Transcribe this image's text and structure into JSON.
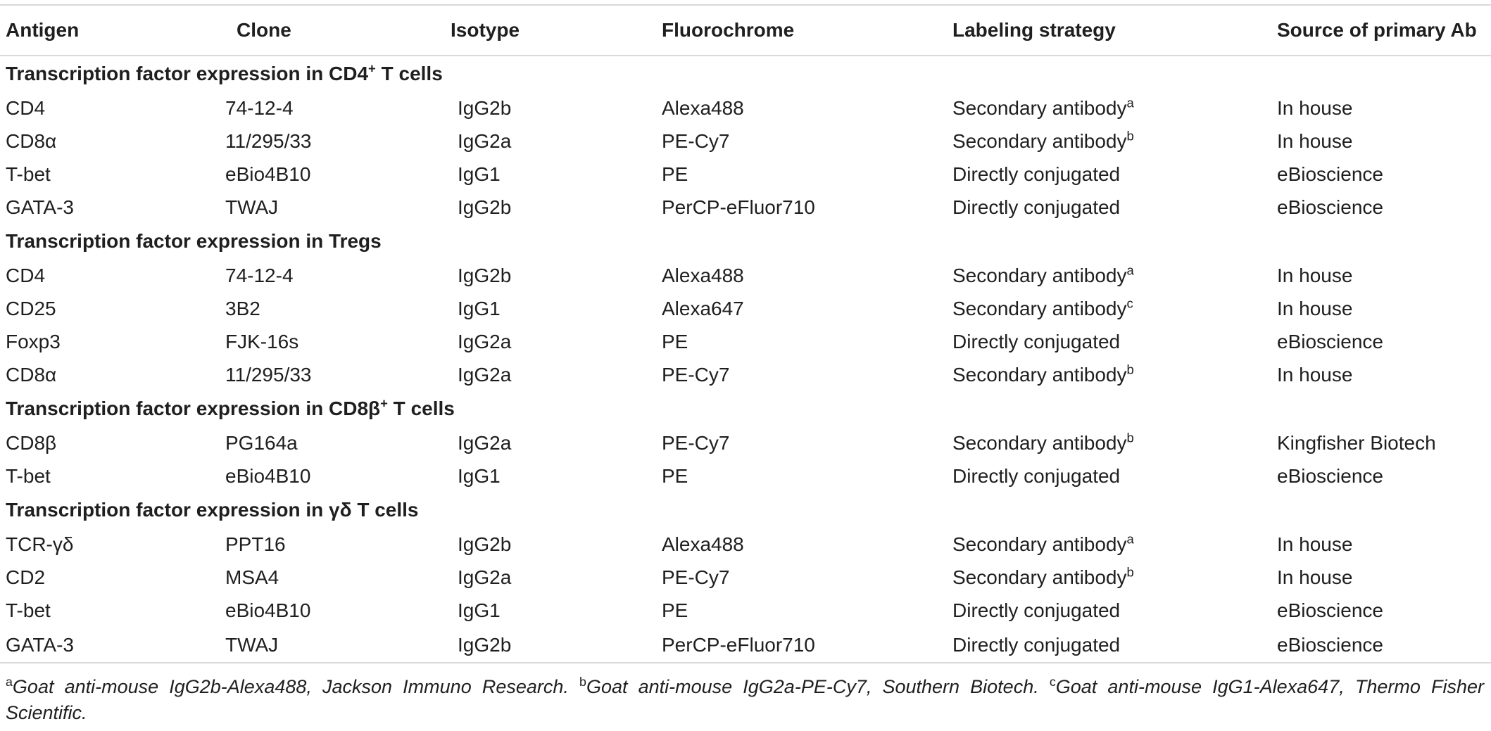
{
  "headers": [
    "Antigen",
    "Clone",
    "Isotype",
    "Fluorochrome",
    "Labeling strategy",
    "Source of primary Ab"
  ],
  "sections": [
    {
      "title": "Transcription factor expression in CD4",
      "title_sup": "+",
      "title_suffix": " T cells",
      "rows": [
        {
          "antigen": "CD4",
          "clone": "74-12-4",
          "isotype": "IgG2b",
          "fluorochrome": "Alexa488",
          "labeling": "Secondary antibody",
          "labeling_sup": "a",
          "source": "In house"
        },
        {
          "antigen": "CD8α",
          "clone": "11/295/33",
          "isotype": "IgG2a",
          "fluorochrome": "PE-Cy7",
          "labeling": "Secondary antibody",
          "labeling_sup": "b",
          "source": "In house"
        },
        {
          "antigen": "T-bet",
          "clone": "eBio4B10",
          "isotype": "IgG1",
          "fluorochrome": "PE",
          "labeling": "Directly conjugated",
          "labeling_sup": "",
          "source": "eBioscience"
        },
        {
          "antigen": "GATA-3",
          "clone": "TWAJ",
          "isotype": "IgG2b",
          "fluorochrome": "PerCP-eFluor710",
          "labeling": "Directly conjugated",
          "labeling_sup": "",
          "source": "eBioscience"
        }
      ]
    },
    {
      "title": "Transcription factor expression in Tregs",
      "title_sup": "",
      "title_suffix": "",
      "rows": [
        {
          "antigen": "CD4",
          "clone": "74-12-4",
          "isotype": "IgG2b",
          "fluorochrome": "Alexa488",
          "labeling": "Secondary antibody",
          "labeling_sup": "a",
          "source": "In house"
        },
        {
          "antigen": "CD25",
          "clone": "3B2",
          "isotype": "IgG1",
          "fluorochrome": "Alexa647",
          "labeling": "Secondary antibody",
          "labeling_sup": "c",
          "source": "In house"
        },
        {
          "antigen": "Foxp3",
          "clone": "FJK-16s",
          "isotype": "IgG2a",
          "fluorochrome": "PE",
          "labeling": "Directly conjugated",
          "labeling_sup": "",
          "source": "eBioscience"
        },
        {
          "antigen": "CD8α",
          "clone": "11/295/33",
          "isotype": "IgG2a",
          "fluorochrome": "PE-Cy7",
          "labeling": "Secondary antibody",
          "labeling_sup": "b",
          "source": "In house"
        }
      ]
    },
    {
      "title": "Transcription factor expression in CD8β",
      "title_sup": "+",
      "title_suffix": " T cells",
      "rows": [
        {
          "antigen": "CD8β",
          "clone": "PG164a",
          "isotype": "IgG2a",
          "fluorochrome": "PE-Cy7",
          "labeling": "Secondary antibody",
          "labeling_sup": "b",
          "source": "Kingfisher Biotech"
        },
        {
          "antigen": "T-bet",
          "clone": "eBio4B10",
          "isotype": "IgG1",
          "fluorochrome": "PE",
          "labeling": "Directly conjugated",
          "labeling_sup": "",
          "source": "eBioscience"
        }
      ]
    },
    {
      "title": "Transcription factor expression in γδ T cells",
      "title_sup": "",
      "title_suffix": "",
      "rows": [
        {
          "antigen": "TCR-γδ",
          "clone": "PPT16",
          "isotype": "IgG2b",
          "fluorochrome": "Alexa488",
          "labeling": "Secondary antibody",
          "labeling_sup": "a",
          "source": "In house"
        },
        {
          "antigen": "CD2",
          "clone": "MSA4",
          "isotype": "IgG2a",
          "fluorochrome": "PE-Cy7",
          "labeling": "Secondary antibody",
          "labeling_sup": "b",
          "source": "In house"
        },
        {
          "antigen": "T-bet",
          "clone": "eBio4B10",
          "isotype": "IgG1",
          "fluorochrome": "PE",
          "labeling": "Directly conjugated",
          "labeling_sup": "",
          "source": "eBioscience"
        },
        {
          "antigen": "GATA-3",
          "clone": "TWAJ",
          "isotype": "IgG2b",
          "fluorochrome": "PerCP-eFluor710",
          "labeling": "Directly conjugated",
          "labeling_sup": "",
          "source": "eBioscience"
        }
      ]
    }
  ],
  "footnotes": [
    {
      "mark": "a",
      "text": "Goat anti-mouse IgG2b-Alexa488, Jackson Immuno Research."
    },
    {
      "mark": "b",
      "text": "Goat anti-mouse IgG2a-PE-Cy7, Southern Biotech."
    },
    {
      "mark": "c",
      "text": "Goat anti-mouse IgG1-Alexa647, Thermo Fisher Scientific."
    }
  ]
}
